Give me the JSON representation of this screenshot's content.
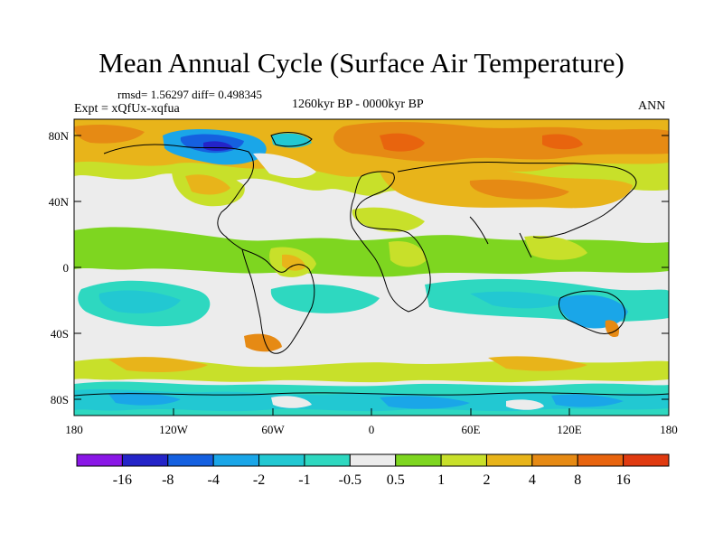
{
  "title": "Mean Annual Cycle (Surface Air Temperature)",
  "stats": "rmsd= 1.56297 diff= 0.498345",
  "experiment": "Expt = xQfUx-xqfua",
  "period": "1260kyr BP - 0000kyr BP",
  "season": "ANN",
  "lat_ticks": [
    "80N",
    "40N",
    "0",
    "40S",
    "80S"
  ],
  "lon_ticks": [
    "180",
    "120W",
    "60W",
    "0",
    "60E",
    "120E",
    "180"
  ],
  "colorbar": {
    "labels": [
      "-16",
      "-8",
      "-4",
      "-2",
      "-1",
      "-0.5",
      "0.5",
      "1",
      "2",
      "4",
      "8",
      "16"
    ],
    "colors": [
      "#8a17e6",
      "#2424c8",
      "#1560e0",
      "#1aa6e8",
      "#22c8d2",
      "#2ed8c0",
      "#ececec",
      "#7ed620",
      "#c8e02a",
      "#e8b41a",
      "#e68a14",
      "#e8640e",
      "#e03a10"
    ]
  },
  "palette": {
    "background": "#ececec",
    "warm1": "#7ed620",
    "warm2": "#c8e02a",
    "warm3": "#e8b41a",
    "warm4": "#e68a14",
    "warm5": "#e8640e",
    "cool1": "#2ed8c0",
    "cool2": "#22c8d2",
    "cool3": "#1aa6e8",
    "cool4": "#1560e0",
    "cool5": "#2424c8"
  }
}
